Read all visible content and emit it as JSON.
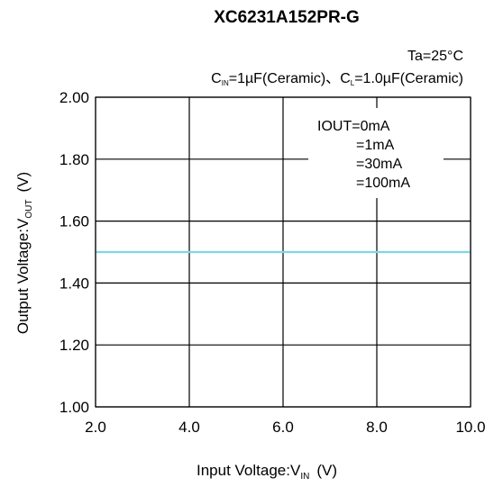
{
  "chart_data": {
    "type": "line",
    "title": "XC6231A152PR-G",
    "condition_ta": "Ta=25°C",
    "condition_caps": {
      "cin_main": "C",
      "cin_sub": "IN",
      "cin_rest": "=1µF(Ceramic)、",
      "cl_main": "C",
      "cl_sub": "L",
      "cl_rest": "=1.0µF(Ceramic)"
    },
    "xlabel": {
      "main": "Input Voltage:V",
      "sub": "IN",
      "unit": "(V)"
    },
    "ylabel": {
      "main": "Output Voltage:V",
      "sub": "OUT",
      "unit": "(V)"
    },
    "xlim": [
      2.0,
      10.0
    ],
    "ylim": [
      1.0,
      2.0
    ],
    "x_ticks": [
      2.0,
      4.0,
      6.0,
      8.0,
      10.0
    ],
    "x_tick_labels": [
      "2.0",
      "4.0",
      "6.0",
      "8.0",
      "10.0"
    ],
    "y_ticks": [
      1.0,
      1.2,
      1.4,
      1.6,
      1.8,
      2.0
    ],
    "y_tick_labels": [
      "1.00",
      "1.20",
      "1.40",
      "1.60",
      "1.80",
      "2.00"
    ],
    "grid": true,
    "legend_position": "top-right",
    "series": [
      {
        "name": "IOUT=0mA",
        "color": "#000000",
        "x": [
          2.0,
          10.0
        ],
        "y": [
          1.5,
          1.5
        ]
      },
      {
        "name": "=1mA",
        "color": "#1f3fd0",
        "x": [
          2.0,
          10.0
        ],
        "y": [
          1.5,
          1.5
        ]
      },
      {
        "name": "=30mA",
        "color": "#2fae4f",
        "x": [
          2.0,
          10.0
        ],
        "y": [
          1.5,
          1.5
        ]
      },
      {
        "name": "=100mA",
        "color": "#7fd7ea",
        "x": [
          2.0,
          10.0
        ],
        "y": [
          1.5,
          1.5
        ]
      }
    ]
  }
}
